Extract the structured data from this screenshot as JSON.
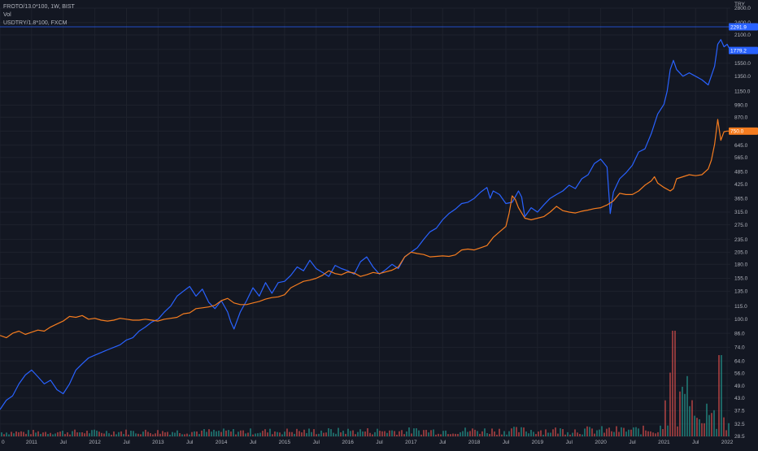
{
  "legend": {
    "series1": "FROTO/13.0*100, 1W, BIST",
    "series2": "Vol",
    "series3": "USDTRY/1.8*100, FXCM"
  },
  "currency_label": "TRY",
  "colors": {
    "background": "#131722",
    "grid": "#1e222d",
    "froto": "#2962ff",
    "usdtry": "#f57c1f",
    "vol_up": "#26a69a",
    "vol_down": "#ef5350",
    "axis_text": "#b2b5be",
    "crosshair": "#2962ff"
  },
  "chart_data": {
    "type": "line",
    "y_scale": "log",
    "ylim": [
      28.5,
      2800
    ],
    "y_ticks": [
      2800.0,
      2400.0,
      2100.0,
      1800.0,
      1550.0,
      1350.0,
      1150.0,
      990.0,
      870.0,
      750.0,
      645.0,
      565.0,
      485.0,
      425.0,
      365.0,
      315.0,
      275.0,
      235.0,
      205.0,
      180.0,
      155.0,
      135.0,
      115.0,
      100.0,
      86.0,
      74.0,
      64.0,
      56.0,
      49.0,
      43.0,
      37.5,
      32.5,
      28.5
    ],
    "y_tick_labels": [
      "2800.0",
      "2400.0",
      "2100.0",
      "1800.0",
      "1550.0",
      "1350.0",
      "1150.0",
      "990.0",
      "870.0",
      "750.0",
      "645.0",
      "565.0",
      "485.0",
      "425.0",
      "365.0",
      "315.0",
      "275.0",
      "235.0",
      "205.0",
      "180.0",
      "155.0",
      "135.0",
      "115.0",
      "100.0",
      "86.0",
      "74.0",
      "64.0",
      "56.0",
      "49.0",
      "43.0",
      "37.5",
      "32.5",
      "28.5"
    ],
    "xlim": [
      2010.5,
      2022.05
    ],
    "x_ticks": [
      {
        "label": "0",
        "t": 2010.5
      },
      {
        "label": "2011",
        "t": 2011.0
      },
      {
        "label": "Jul",
        "t": 2011.5
      },
      {
        "label": "2012",
        "t": 2012.0
      },
      {
        "label": "Jul",
        "t": 2012.5
      },
      {
        "label": "2013",
        "t": 2013.0
      },
      {
        "label": "Jul",
        "t": 2013.5
      },
      {
        "label": "2014",
        "t": 2014.0
      },
      {
        "label": "Jul",
        "t": 2014.5
      },
      {
        "label": "2015",
        "t": 2015.0
      },
      {
        "label": "Jul",
        "t": 2015.5
      },
      {
        "label": "2016",
        "t": 2016.0
      },
      {
        "label": "Jul",
        "t": 2016.5
      },
      {
        "label": "2017",
        "t": 2017.0
      },
      {
        "label": "Jul",
        "t": 2017.5
      },
      {
        "label": "2018",
        "t": 2018.0
      },
      {
        "label": "Jul",
        "t": 2018.5
      },
      {
        "label": "2019",
        "t": 2019.0
      },
      {
        "label": "Jul",
        "t": 2019.5
      },
      {
        "label": "2020",
        "t": 2020.0
      },
      {
        "label": "Jul",
        "t": 2020.5
      },
      {
        "label": "2021",
        "t": 2021.0
      },
      {
        "label": "Jul",
        "t": 2021.5
      },
      {
        "label": "2022",
        "t": 2022.0
      }
    ],
    "last_value_labels": [
      {
        "series": "FROTO/13.0*100",
        "value": 2291.9,
        "text": "2291.9"
      },
      {
        "series": "FROTO/13.0*100",
        "value": 1779.2,
        "text": "1779.2"
      },
      {
        "series": "USDTRY/1.8*100",
        "value": 750.0,
        "text": "750.0"
      }
    ],
    "series": [
      {
        "name": "FROTO/13.0*100",
        "color": "#2962ff",
        "points": [
          [
            2010.5,
            38
          ],
          [
            2010.6,
            42
          ],
          [
            2010.7,
            44
          ],
          [
            2010.8,
            50
          ],
          [
            2010.9,
            55
          ],
          [
            2011.0,
            58
          ],
          [
            2011.1,
            54
          ],
          [
            2011.2,
            50
          ],
          [
            2011.3,
            52
          ],
          [
            2011.4,
            47
          ],
          [
            2011.5,
            45
          ],
          [
            2011.6,
            50
          ],
          [
            2011.7,
            58
          ],
          [
            2011.8,
            62
          ],
          [
            2011.9,
            66
          ],
          [
            2012.0,
            68
          ],
          [
            2012.1,
            70
          ],
          [
            2012.2,
            72
          ],
          [
            2012.3,
            74
          ],
          [
            2012.4,
            76
          ],
          [
            2012.5,
            80
          ],
          [
            2012.6,
            82
          ],
          [
            2012.7,
            88
          ],
          [
            2012.8,
            92
          ],
          [
            2012.9,
            97
          ],
          [
            2013.0,
            100
          ],
          [
            2013.1,
            108
          ],
          [
            2013.2,
            115
          ],
          [
            2013.3,
            128
          ],
          [
            2013.4,
            135
          ],
          [
            2013.5,
            142
          ],
          [
            2013.6,
            128
          ],
          [
            2013.7,
            138
          ],
          [
            2013.8,
            120
          ],
          [
            2013.9,
            112
          ],
          [
            2014.0,
            122
          ],
          [
            2014.1,
            108
          ],
          [
            2014.15,
            97
          ],
          [
            2014.2,
            90
          ],
          [
            2014.3,
            108
          ],
          [
            2014.4,
            122
          ],
          [
            2014.5,
            140
          ],
          [
            2014.6,
            128
          ],
          [
            2014.7,
            148
          ],
          [
            2014.8,
            132
          ],
          [
            2014.9,
            148
          ],
          [
            2015.0,
            150
          ],
          [
            2015.1,
            160
          ],
          [
            2015.2,
            175
          ],
          [
            2015.3,
            168
          ],
          [
            2015.4,
            188
          ],
          [
            2015.5,
            172
          ],
          [
            2015.6,
            165
          ],
          [
            2015.7,
            158
          ],
          [
            2015.8,
            178
          ],
          [
            2015.9,
            172
          ],
          [
            2016.0,
            168
          ],
          [
            2016.1,
            162
          ],
          [
            2016.2,
            185
          ],
          [
            2016.3,
            195
          ],
          [
            2016.4,
            175
          ],
          [
            2016.5,
            162
          ],
          [
            2016.6,
            170
          ],
          [
            2016.7,
            180
          ],
          [
            2016.8,
            172
          ],
          [
            2016.9,
            195
          ],
          [
            2017.0,
            205
          ],
          [
            2017.1,
            215
          ],
          [
            2017.2,
            235
          ],
          [
            2017.3,
            255
          ],
          [
            2017.4,
            265
          ],
          [
            2017.5,
            290
          ],
          [
            2017.6,
            310
          ],
          [
            2017.7,
            325
          ],
          [
            2017.8,
            345
          ],
          [
            2017.9,
            350
          ],
          [
            2018.0,
            365
          ],
          [
            2018.1,
            390
          ],
          [
            2018.2,
            410
          ],
          [
            2018.25,
            365
          ],
          [
            2018.3,
            395
          ],
          [
            2018.4,
            380
          ],
          [
            2018.5,
            345
          ],
          [
            2018.6,
            350
          ],
          [
            2018.7,
            395
          ],
          [
            2018.75,
            370
          ],
          [
            2018.8,
            300
          ],
          [
            2018.9,
            330
          ],
          [
            2019.0,
            315
          ],
          [
            2019.1,
            340
          ],
          [
            2019.2,
            365
          ],
          [
            2019.3,
            380
          ],
          [
            2019.4,
            395
          ],
          [
            2019.5,
            420
          ],
          [
            2019.6,
            405
          ],
          [
            2019.7,
            450
          ],
          [
            2019.8,
            470
          ],
          [
            2019.9,
            530
          ],
          [
            2020.0,
            555
          ],
          [
            2020.1,
            510
          ],
          [
            2020.15,
            310
          ],
          [
            2020.2,
            390
          ],
          [
            2020.3,
            450
          ],
          [
            2020.4,
            480
          ],
          [
            2020.5,
            520
          ],
          [
            2020.6,
            600
          ],
          [
            2020.7,
            620
          ],
          [
            2020.8,
            730
          ],
          [
            2020.9,
            900
          ],
          [
            2021.0,
            1000
          ],
          [
            2021.05,
            1150
          ],
          [
            2021.1,
            1450
          ],
          [
            2021.15,
            1600
          ],
          [
            2021.2,
            1450
          ],
          [
            2021.3,
            1350
          ],
          [
            2021.4,
            1400
          ],
          [
            2021.5,
            1350
          ],
          [
            2021.6,
            1300
          ],
          [
            2021.7,
            1230
          ],
          [
            2021.8,
            1500
          ],
          [
            2021.85,
            1900
          ],
          [
            2021.9,
            2000
          ],
          [
            2021.95,
            1850
          ],
          [
            2022.0,
            1900
          ],
          [
            2022.05,
            1779.2
          ]
        ]
      },
      {
        "name": "USDTRY/1.8*100",
        "color": "#f57c1f",
        "points": [
          [
            2010.5,
            84
          ],
          [
            2010.6,
            82
          ],
          [
            2010.7,
            86
          ],
          [
            2010.8,
            88
          ],
          [
            2010.9,
            85
          ],
          [
            2011.0,
            87
          ],
          [
            2011.1,
            89
          ],
          [
            2011.2,
            88
          ],
          [
            2011.3,
            92
          ],
          [
            2011.4,
            95
          ],
          [
            2011.5,
            98
          ],
          [
            2011.6,
            103
          ],
          [
            2011.7,
            102
          ],
          [
            2011.8,
            104
          ],
          [
            2011.9,
            100
          ],
          [
            2012.0,
            101
          ],
          [
            2012.1,
            99
          ],
          [
            2012.2,
            98
          ],
          [
            2012.3,
            99
          ],
          [
            2012.4,
            101
          ],
          [
            2012.5,
            100
          ],
          [
            2012.6,
            99
          ],
          [
            2012.7,
            99
          ],
          [
            2012.8,
            100
          ],
          [
            2012.9,
            99
          ],
          [
            2013.0,
            98
          ],
          [
            2013.1,
            100
          ],
          [
            2013.2,
            101
          ],
          [
            2013.3,
            102
          ],
          [
            2013.4,
            106
          ],
          [
            2013.5,
            107
          ],
          [
            2013.6,
            112
          ],
          [
            2013.7,
            113
          ],
          [
            2013.8,
            114
          ],
          [
            2013.9,
            116
          ],
          [
            2014.0,
            122
          ],
          [
            2014.1,
            125
          ],
          [
            2014.2,
            119
          ],
          [
            2014.3,
            117
          ],
          [
            2014.4,
            117
          ],
          [
            2014.5,
            119
          ],
          [
            2014.6,
            121
          ],
          [
            2014.7,
            124
          ],
          [
            2014.8,
            126
          ],
          [
            2014.9,
            127
          ],
          [
            2015.0,
            130
          ],
          [
            2015.1,
            140
          ],
          [
            2015.2,
            145
          ],
          [
            2015.3,
            150
          ],
          [
            2015.4,
            152
          ],
          [
            2015.5,
            155
          ],
          [
            2015.6,
            160
          ],
          [
            2015.7,
            168
          ],
          [
            2015.8,
            163
          ],
          [
            2015.9,
            161
          ],
          [
            2016.0,
            166
          ],
          [
            2016.1,
            164
          ],
          [
            2016.2,
            158
          ],
          [
            2016.3,
            161
          ],
          [
            2016.4,
            165
          ],
          [
            2016.5,
            163
          ],
          [
            2016.6,
            166
          ],
          [
            2016.7,
            169
          ],
          [
            2016.8,
            175
          ],
          [
            2016.9,
            195
          ],
          [
            2017.0,
            205
          ],
          [
            2017.1,
            202
          ],
          [
            2017.2,
            200
          ],
          [
            2017.3,
            195
          ],
          [
            2017.4,
            196
          ],
          [
            2017.5,
            197
          ],
          [
            2017.6,
            196
          ],
          [
            2017.7,
            199
          ],
          [
            2017.8,
            210
          ],
          [
            2017.9,
            212
          ],
          [
            2018.0,
            210
          ],
          [
            2018.1,
            215
          ],
          [
            2018.2,
            220
          ],
          [
            2018.3,
            240
          ],
          [
            2018.4,
            255
          ],
          [
            2018.5,
            270
          ],
          [
            2018.55,
            310
          ],
          [
            2018.6,
            375
          ],
          [
            2018.65,
            360
          ],
          [
            2018.7,
            330
          ],
          [
            2018.8,
            295
          ],
          [
            2018.9,
            290
          ],
          [
            2019.0,
            295
          ],
          [
            2019.1,
            300
          ],
          [
            2019.2,
            315
          ],
          [
            2019.3,
            335
          ],
          [
            2019.4,
            320
          ],
          [
            2019.5,
            315
          ],
          [
            2019.6,
            312
          ],
          [
            2019.7,
            318
          ],
          [
            2019.8,
            322
          ],
          [
            2019.9,
            327
          ],
          [
            2020.0,
            330
          ],
          [
            2020.1,
            340
          ],
          [
            2020.2,
            355
          ],
          [
            2020.3,
            385
          ],
          [
            2020.4,
            380
          ],
          [
            2020.5,
            380
          ],
          [
            2020.6,
            395
          ],
          [
            2020.7,
            420
          ],
          [
            2020.8,
            440
          ],
          [
            2020.85,
            460
          ],
          [
            2020.9,
            430
          ],
          [
            2021.0,
            410
          ],
          [
            2021.1,
            395
          ],
          [
            2021.15,
            405
          ],
          [
            2021.2,
            450
          ],
          [
            2021.3,
            460
          ],
          [
            2021.4,
            470
          ],
          [
            2021.5,
            465
          ],
          [
            2021.6,
            470
          ],
          [
            2021.7,
            500
          ],
          [
            2021.75,
            550
          ],
          [
            2021.8,
            650
          ],
          [
            2021.85,
            850
          ],
          [
            2021.9,
            680
          ],
          [
            2021.95,
            745
          ],
          [
            2022.0,
            750
          ],
          [
            2022.05,
            750
          ]
        ]
      }
    ]
  }
}
